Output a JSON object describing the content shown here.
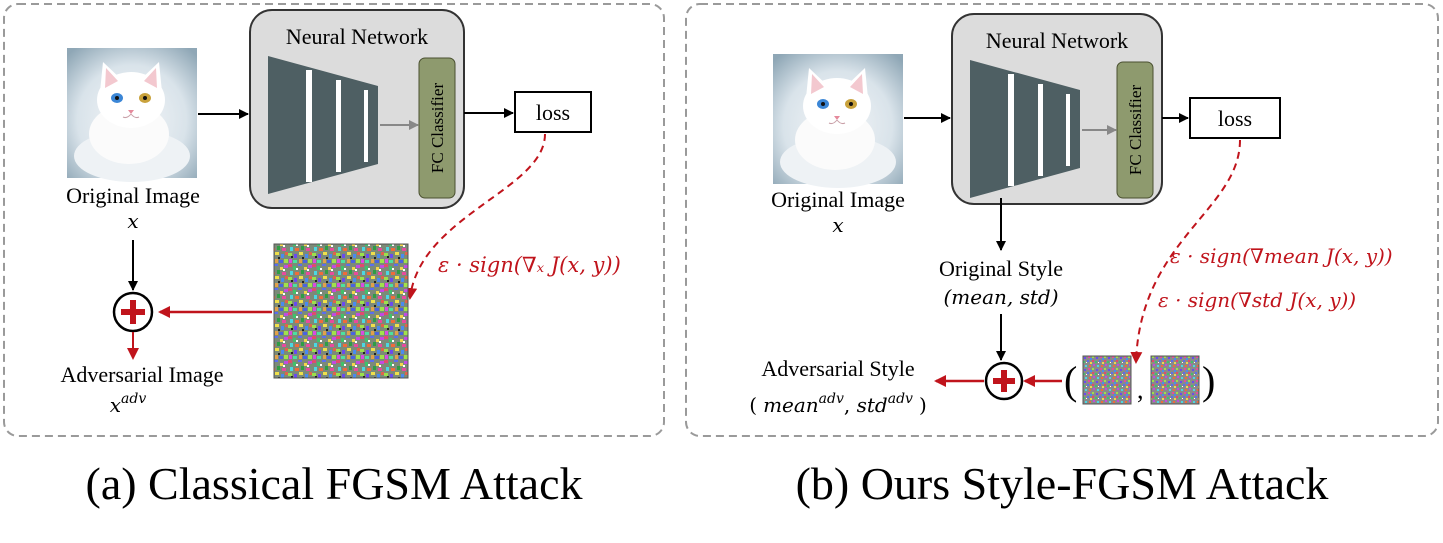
{
  "panel_a": {
    "caption": "(a) Classical FGSM Attack",
    "network_title": "Neural Network",
    "classifier_label": "FC Classifier",
    "loss_label": "loss",
    "original_image_label": "Original Image",
    "original_image_var": "x",
    "gradient_formula": "ε · sign(∇ₓ J(x, y))",
    "adversarial_label": "Adversarial Image",
    "adversarial_var_base": "x",
    "adversarial_var_sup": "adv"
  },
  "panel_b": {
    "caption": "(b) Ours Style-FGSM Attack",
    "network_title": "Neural Network",
    "classifier_label": "FC Classifier",
    "loss_label": "loss",
    "original_image_label": "Original Image",
    "original_image_var": "x",
    "original_style_label": "Original Style",
    "original_style_var": "(mean, std)",
    "gradient_mean_formula": "ε · sign(∇mean J(x, y))",
    "gradient_std_formula": "ε · sign(∇std J(x, y))",
    "adversarial_style_label": "Adversarial Style",
    "adversarial_style_open": "(",
    "adversarial_style_mean": "mean",
    "adversarial_style_std": "std",
    "adversarial_style_sup": "adv",
    "adversarial_style_close": ")",
    "pair_open": "(",
    "pair_sep": ",",
    "pair_close": ")"
  },
  "colors": {
    "red": "#c0141c",
    "network_bg": "#dcdcdc",
    "encoder": "#4e5f63",
    "classifier": "#8e9a6e",
    "panel_border": "#9a9a9a"
  }
}
